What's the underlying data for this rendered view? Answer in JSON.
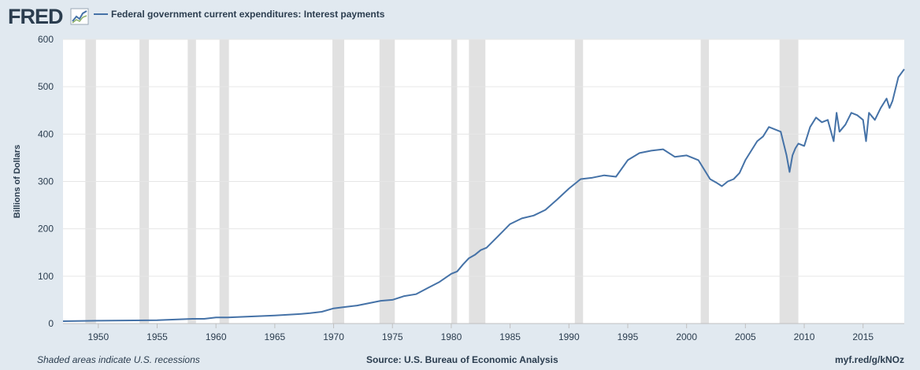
{
  "header": {
    "logo_text": "FRED",
    "legend_label": "Federal government current expenditures: Interest payments"
  },
  "footer": {
    "note": "Shaded areas indicate U.S. recessions",
    "source": "Source: U.S. Bureau of Economic Analysis",
    "link": "myf.red/g/kNOz"
  },
  "colors": {
    "line": "#4572a7",
    "recession": "#e1e1e1",
    "background": "#e1e9f0",
    "plot": "#ffffff",
    "text": "#2b3d4f"
  },
  "chart_data": {
    "type": "line",
    "title": "",
    "xlabel": "",
    "ylabel": "Billions of Dollars",
    "ylim": [
      0,
      600
    ],
    "xlim": [
      1947.0,
      2018.5
    ],
    "yticks": [
      0,
      100,
      200,
      300,
      400,
      500,
      600
    ],
    "xticks": [
      1950,
      1955,
      1960,
      1965,
      1970,
      1975,
      1980,
      1985,
      1990,
      1995,
      2000,
      2005,
      2010,
      2015
    ],
    "grid": true,
    "legend_position": "top-left",
    "recessions": [
      [
        1948.9,
        1949.8
      ],
      [
        1953.5,
        1954.3
      ],
      [
        1957.6,
        1958.3
      ],
      [
        1960.3,
        1961.1
      ],
      [
        1969.9,
        1970.9
      ],
      [
        1973.9,
        1975.2
      ],
      [
        1980.0,
        1980.5
      ],
      [
        1981.5,
        1982.9
      ],
      [
        1990.5,
        1991.2
      ],
      [
        2001.2,
        2001.9
      ],
      [
        2007.9,
        2009.5
      ]
    ],
    "series": [
      {
        "name": "Federal government current expenditures: Interest payments",
        "x": [
          1947.0,
          1950.0,
          1955.0,
          1958.0,
          1959.0,
          1960.0,
          1961.0,
          1965.0,
          1967.0,
          1968.0,
          1969.0,
          1970.0,
          1971.0,
          1972.0,
          1973.0,
          1974.0,
          1975.0,
          1976.0,
          1977.0,
          1978.0,
          1979.0,
          1980.0,
          1980.5,
          1981.0,
          1981.5,
          1982.0,
          1982.5,
          1983.0,
          1984.0,
          1985.0,
          1986.0,
          1987.0,
          1988.0,
          1989.0,
          1990.0,
          1991.0,
          1992.0,
          1993.0,
          1994.0,
          1995.0,
          1996.0,
          1997.0,
          1998.0,
          1999.0,
          2000.0,
          2001.0,
          2002.0,
          2002.5,
          2003.0,
          2003.5,
          2004.0,
          2004.5,
          2005.0,
          2005.5,
          2006.0,
          2006.5,
          2007.0,
          2007.5,
          2008.0,
          2008.5,
          2008.75,
          2009.0,
          2009.25,
          2009.5,
          2010.0,
          2010.5,
          2011.0,
          2011.5,
          2012.0,
          2012.5,
          2012.75,
          2013.0,
          2013.5,
          2014.0,
          2014.5,
          2015.0,
          2015.25,
          2015.5,
          2016.0,
          2016.5,
          2017.0,
          2017.25,
          2017.5,
          2018.0,
          2018.5
        ],
        "values": [
          5,
          6,
          7,
          10,
          10,
          13,
          13,
          17,
          20,
          22,
          25,
          32,
          35,
          38,
          43,
          48,
          50,
          58,
          62,
          75,
          88,
          105,
          110,
          125,
          138,
          145,
          155,
          160,
          185,
          210,
          222,
          228,
          240,
          262,
          285,
          305,
          308,
          313,
          310,
          345,
          360,
          365,
          368,
          352,
          355,
          345,
          305,
          298,
          290,
          300,
          305,
          318,
          345,
          365,
          385,
          395,
          415,
          410,
          405,
          355,
          320,
          355,
          370,
          380,
          375,
          415,
          435,
          425,
          430,
          385,
          445,
          405,
          420,
          445,
          440,
          430,
          385,
          445,
          430,
          455,
          475,
          455,
          470,
          520,
          537
        ]
      }
    ]
  }
}
